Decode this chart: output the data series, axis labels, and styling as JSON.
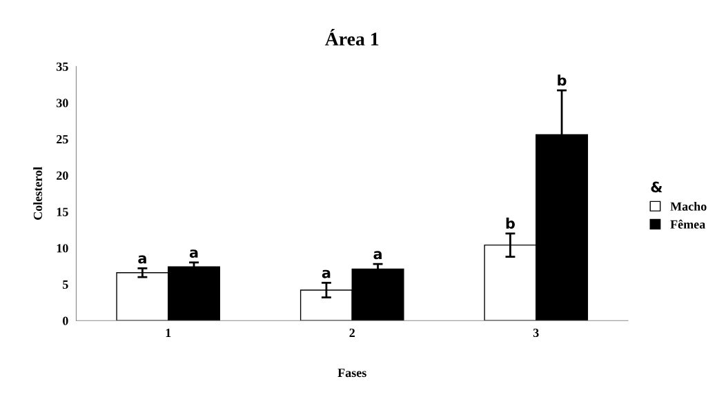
{
  "chart_data": {
    "type": "bar",
    "title": "Área 1",
    "xlabel": "Fases",
    "ylabel": "Colesterol",
    "legend_title": "&",
    "categories": [
      "1",
      "2",
      "3"
    ],
    "series": [
      {
        "name": "Macho",
        "color": "#ffffff",
        "values": [
          6.6,
          4.2,
          10.4
        ],
        "errors": [
          0.6,
          1.0,
          1.6
        ]
      },
      {
        "name": "Fêmea",
        "color": "#000000",
        "values": [
          7.4,
          7.1,
          25.6
        ],
        "errors": [
          0.6,
          0.7,
          6.1
        ]
      }
    ],
    "ylim": [
      0,
      35
    ],
    "yticks": [
      0,
      5,
      10,
      15,
      20,
      25,
      30,
      35
    ],
    "grid": false,
    "legend": "right",
    "annotations": [
      "a",
      "a",
      "a",
      "a",
      "b",
      "b"
    ]
  }
}
